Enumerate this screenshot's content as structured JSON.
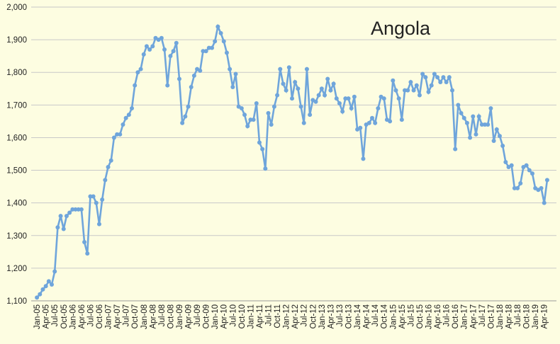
{
  "chart_data": {
    "type": "line",
    "title": "Angola",
    "categories": [
      "Jan-05",
      null,
      null,
      "Apr-05",
      null,
      null,
      "Jul-05",
      null,
      null,
      "Oct-05",
      null,
      null,
      "Jan-06",
      null,
      null,
      "Apr-06",
      null,
      null,
      "Jul-06",
      null,
      null,
      "Oct-06",
      null,
      null,
      "Jan-07",
      null,
      null,
      "Apr-07",
      null,
      null,
      "Jul-07",
      null,
      null,
      "Oct-07",
      null,
      null,
      "Jan-08",
      null,
      null,
      "Apr-08",
      null,
      null,
      "Jul-08",
      null,
      null,
      "Oct-08",
      null,
      null,
      "Jan-09",
      null,
      null,
      "Apr-09",
      null,
      null,
      "Jul-09",
      null,
      null,
      "Oct-09",
      null,
      null,
      "Jan-10",
      null,
      null,
      "Apr-10",
      null,
      null,
      "Jul-10",
      null,
      null,
      "Oct-10",
      null,
      null,
      "Jan-11",
      null,
      null,
      "Apr-11",
      null,
      null,
      "Jul-11",
      null,
      null,
      "Oct-11",
      null,
      null,
      "Jan-12",
      null,
      null,
      "Apr-12",
      null,
      null,
      "Jul-12",
      null,
      null,
      "Oct-12",
      null,
      null,
      "Jan-13",
      null,
      null,
      "Apr-13",
      null,
      null,
      "Jul-13",
      null,
      null,
      "Oct-13",
      null,
      null,
      "Jan-14",
      null,
      null,
      "Apr-14",
      null,
      null,
      "Jul-14",
      null,
      null,
      "Oct-14",
      null,
      null,
      "Jan-15",
      null,
      null,
      "Apr-15",
      null,
      null,
      "Jul-15",
      null,
      null,
      "Oct-15",
      null,
      null,
      "Jan-16",
      null,
      null,
      "Apr-16",
      null,
      null,
      "Jul-16",
      null,
      null,
      "Oct-16",
      null,
      null,
      "Jan-17",
      null,
      null,
      "Apr-17",
      null,
      null,
      "Jul-17",
      null,
      null,
      "Oct-17",
      null,
      null,
      "Jan-18",
      null,
      null,
      "Apr-18",
      null,
      null,
      "Jul-18",
      null,
      null,
      "Oct-18",
      null,
      null,
      "Jan-19",
      null,
      null,
      "Apr-19",
      null
    ],
    "series": [
      {
        "name": "Angola",
        "color": "#6fa5db",
        "values": [
          1110,
          1120,
          1135,
          1145,
          1160,
          1150,
          1190,
          1325,
          1360,
          1320,
          1360,
          1370,
          1380,
          1380,
          1380,
          1380,
          1280,
          1245,
          1420,
          1420,
          1400,
          1335,
          1410,
          1470,
          1510,
          1530,
          1600,
          1610,
          1610,
          1640,
          1660,
          1670,
          1690,
          1760,
          1800,
          1810,
          1855,
          1880,
          1870,
          1880,
          1905,
          1900,
          1905,
          1870,
          1760,
          1850,
          1865,
          1890,
          1780,
          1645,
          1665,
          1695,
          1755,
          1790,
          1810,
          1805,
          1865,
          1865,
          1875,
          1875,
          1895,
          1940,
          1920,
          1895,
          1860,
          1810,
          1755,
          1795,
          1695,
          1690,
          1670,
          1635,
          1655,
          1655,
          1705,
          1585,
          1565,
          1505,
          1675,
          1640,
          1695,
          1730,
          1810,
          1765,
          1745,
          1815,
          1720,
          1770,
          1750,
          1695,
          1645,
          1810,
          1670,
          1715,
          1710,
          1730,
          1750,
          1730,
          1780,
          1745,
          1765,
          1720,
          1705,
          1680,
          1720,
          1720,
          1690,
          1725,
          1625,
          1630,
          1535,
          1640,
          1645,
          1660,
          1645,
          1690,
          1725,
          1720,
          1655,
          1650,
          1775,
          1745,
          1720,
          1655,
          1745,
          1745,
          1770,
          1745,
          1760,
          1730,
          1795,
          1785,
          1740,
          1760,
          1795,
          1785,
          1770,
          1785,
          1770,
          1785,
          1745,
          1565,
          1700,
          1675,
          1660,
          1645,
          1600,
          1665,
          1610,
          1665,
          1640,
          1640,
          1640,
          1690,
          1590,
          1625,
          1605,
          1575,
          1525,
          1510,
          1515,
          1445,
          1445,
          1460,
          1510,
          1515,
          1500,
          1490,
          1445,
          1440,
          1445,
          1400,
          1470
        ]
      }
    ],
    "ylim": [
      1100,
      2000
    ],
    "yticks": [
      {
        "value": 1100,
        "label": "1,100"
      },
      {
        "value": 1200,
        "label": "1,200"
      },
      {
        "value": 1300,
        "label": "1,300"
      },
      {
        "value": 1400,
        "label": "1,400"
      },
      {
        "value": 1500,
        "label": "1,500"
      },
      {
        "value": 1600,
        "label": "1,600"
      },
      {
        "value": 1700,
        "label": "1,700"
      },
      {
        "value": 1800,
        "label": "1,800"
      },
      {
        "value": 1900,
        "label": "1,900"
      },
      {
        "value": 2000,
        "label": "2,000"
      }
    ],
    "grid": true
  }
}
